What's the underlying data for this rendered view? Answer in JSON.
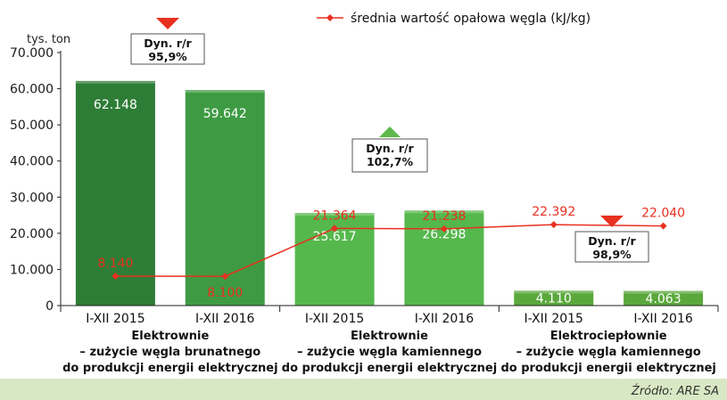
{
  "chart_data": {
    "type": "bar",
    "unit_label": "tys. ton",
    "ylim": [
      0,
      70000
    ],
    "y_ticks": [
      "0",
      "10.000",
      "20.000",
      "30.000",
      "40.000",
      "50.000",
      "60.000",
      "70.000"
    ],
    "categories": [
      "I-XII 2015",
      "I-XII 2016",
      "I-XII 2015",
      "I-XII 2016",
      "I-XII 2015",
      "I-XII 2016"
    ],
    "series": [
      {
        "values": [
          62148,
          59642,
          25617,
          26298,
          4110,
          4063
        ],
        "labels": [
          "62.148",
          "59.642",
          "25.617",
          "26.298",
          "4.110",
          "4.063"
        ],
        "colors": [
          "#2e7d36",
          "#3e9b43",
          "#55b84c",
          "#55b84c",
          "#5aa83c",
          "#5aa83c"
        ]
      },
      {
        "name": "średnia wartość opałowa węgla (kJ/kg)",
        "type": "line",
        "values": [
          8140,
          8100,
          21364,
          21238,
          22392,
          22040
        ],
        "labels": [
          "8.140",
          "8.100",
          "21.364",
          "21.238",
          "22.392",
          "22.040"
        ],
        "color": "#e8301f"
      }
    ],
    "groups": [
      {
        "lines": [
          "Elektrownie",
          "– zużycie węgla brunatnego",
          "do produkcji energii elektrycznej"
        ]
      },
      {
        "lines": [
          "Elektrownie",
          "– zużycie węgla kamiennego",
          "do produkcji energii elektrycznej"
        ]
      },
      {
        "lines": [
          "Elektrociepłownie",
          "– zużycie węgla kamiennego",
          "do produkcji energii elektrycznej"
        ]
      }
    ],
    "annotations": [
      {
        "title": "Dyn. r/r",
        "value": "95,9%",
        "direction": "down"
      },
      {
        "title": "Dyn. r/r",
        "value": "102,7%",
        "direction": "up"
      },
      {
        "title": "Dyn. r/r",
        "value": "98,9%",
        "direction": "down"
      }
    ],
    "colors": {
      "line": "#e8301f",
      "footer": "#d8e8c4",
      "axis": "#222222"
    }
  },
  "source": "Źródło: ARE SA"
}
